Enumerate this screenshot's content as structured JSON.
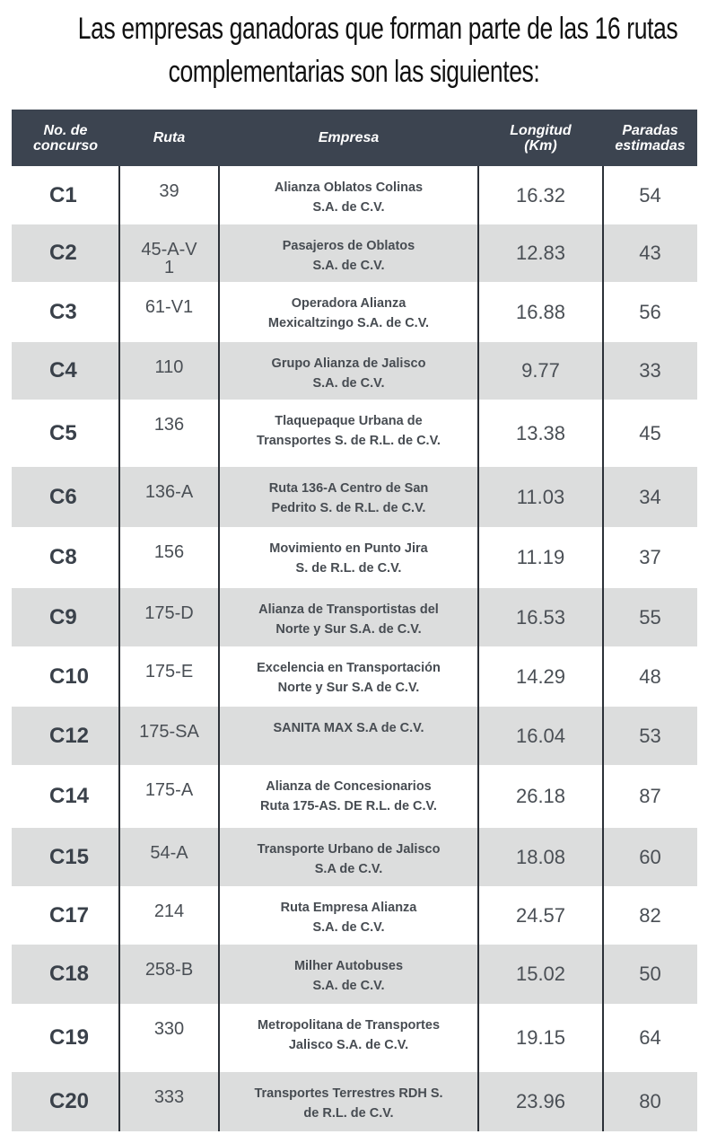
{
  "title": [
    "Las empresas ganadoras que forman parte de las 16 rutas",
    "complementarias son las siguientes:"
  ],
  "table": {
    "header": [
      "No. de\nconcurso",
      "Ruta",
      "Empresa",
      "Longitud\n(Km)",
      "Paradas\nestimadas"
    ],
    "rows": [
      [
        "C1",
        "39",
        "Alianza Oblatos Colinas\nS.A. de C.V.",
        16.32,
        54
      ],
      [
        "C2",
        "45-A-V\n1",
        "Pasajeros de Oblatos\nS.A. de C.V.",
        12.83,
        43
      ],
      [
        "C3",
        "61-V1",
        "Operadora Alianza\nMexicaltzingo S.A. de C.V.",
        16.88,
        56
      ],
      [
        "C4",
        "110",
        "Grupo Alianza de Jalisco\nS.A. de C.V.",
        9.77,
        33
      ],
      [
        "C5",
        "136",
        "Tlaquepaque Urbana de\nTransportes S. de R.L. de C.V.",
        13.38,
        45
      ],
      [
        "C6",
        "136-A",
        "Ruta 136-A Centro de San\nPedrito S. de R.L. de C.V.",
        11.03,
        34
      ],
      [
        "C8",
        "156",
        "Movimiento en Punto Jira\nS. de R.L. de C.V.",
        11.19,
        37
      ],
      [
        "C9",
        "175-D",
        "Alianza de Transportistas del\nNorte y Sur S.A. de C.V.",
        16.53,
        55
      ],
      [
        "C10",
        "175-E",
        "Excelencia en Transportación\nNorte y Sur S.A de C.V.",
        14.29,
        48
      ],
      [
        "C12",
        "175-SA",
        "SANITA MAX S.A de C.V.",
        16.04,
        53
      ],
      [
        "C14",
        "175-A",
        "Alianza de Concesionarios\nRuta 175-AS. DE R.L. de C.V.",
        26.18,
        87
      ],
      [
        "C15",
        "54-A",
        "Transporte Urbano de Jalisco\nS.A de C.V.",
        18.08,
        60
      ],
      [
        "C17",
        "214",
        "Ruta Empresa Alianza\nS.A. de C.V.",
        24.57,
        82
      ],
      [
        "C18",
        "258-B",
        "Milher Autobuses\nS.A. de C.V.",
        15.02,
        50
      ],
      [
        "C19",
        "330",
        "Metropolitana de Transportes\nJalisco S.A. de C.V.",
        19.15,
        64
      ],
      [
        "C20",
        "333",
        "Transportes Terrestres RDH S.\nde R.L. de C.V.",
        23.96,
        80
      ]
    ]
  }
}
